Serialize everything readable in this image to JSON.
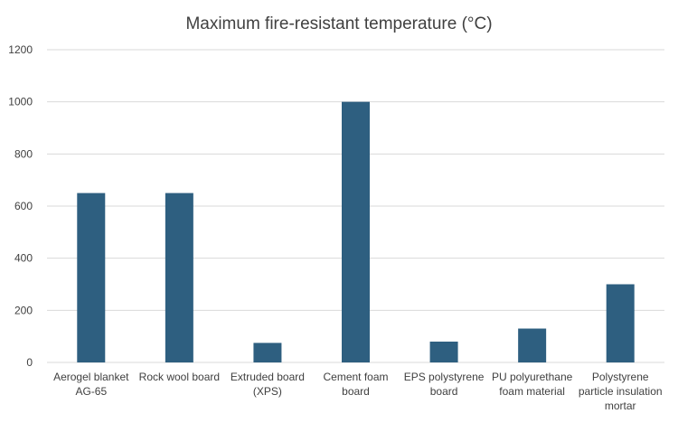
{
  "chart_data": {
    "type": "bar",
    "title": "Maximum fire-resistant temperature (°C)",
    "categories": [
      [
        "Aerogel blanket",
        "AG-65"
      ],
      [
        "Rock wool board"
      ],
      [
        "Extruded board",
        "(XPS)"
      ],
      [
        "Cement foam",
        "board"
      ],
      [
        "EPS polystyrene",
        "board"
      ],
      [
        "PU polyurethane",
        "foam material"
      ],
      [
        "Polystyrene",
        "particle insulation",
        "mortar"
      ]
    ],
    "values": [
      650,
      650,
      75,
      1000,
      80,
      130,
      300
    ],
    "ylim": [
      0,
      1200
    ],
    "yticks": [
      0,
      200,
      400,
      600,
      800,
      1000,
      1200
    ],
    "grid": true,
    "colors": {
      "bar": "#2e5f80",
      "grid": "#d9d9d9",
      "text": "#404040"
    }
  }
}
